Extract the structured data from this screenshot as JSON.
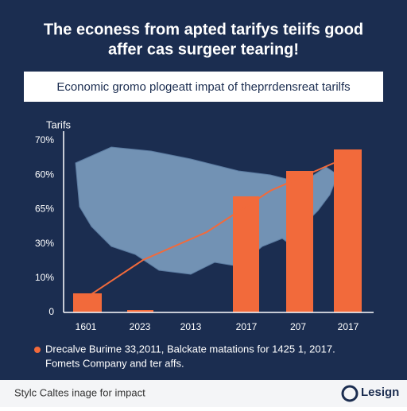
{
  "header": {
    "title_lines": [
      "The econess from apted tarifys teiifs good",
      "affer cas surgeer tearing!"
    ]
  },
  "banner": {
    "text": "Economic gromo plogeatt impat of theprrdensreat tarilfs"
  },
  "chart": {
    "axis_title": "Tarifs",
    "y_labels": [
      "70%",
      "60%",
      "65%",
      "30%",
      "10%",
      "0"
    ],
    "x_labels": [
      "1601",
      "2023",
      "2013",
      "2017",
      "207",
      "2017"
    ]
  },
  "note": {
    "lines": [
      "Drecalve Burime 33,2011, Balckate matations for 1425 1, 2017.",
      "Fomets Company and ter affs."
    ]
  },
  "footer": {
    "caption": "Stylc Caltes inage for impact",
    "logo": "Lesign"
  }
}
